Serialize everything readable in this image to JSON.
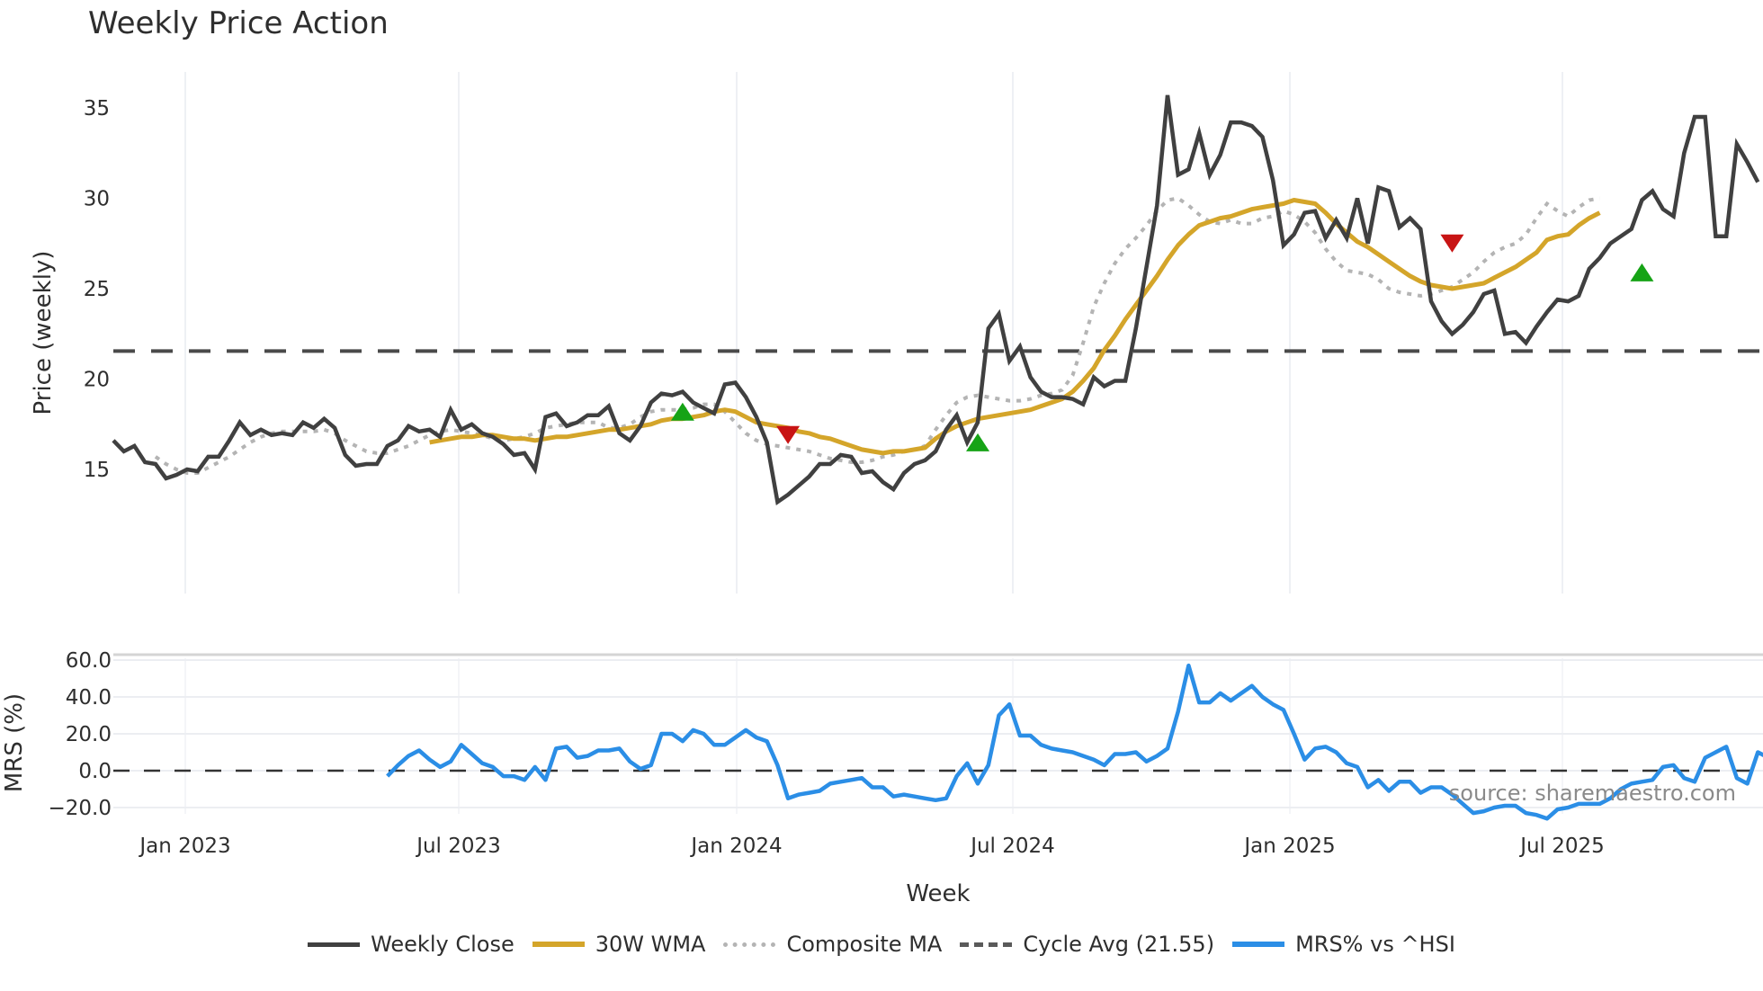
{
  "title": "Weekly Price Action",
  "colors": {
    "weekly_close": "#404040",
    "wma": "#d4a52a",
    "composite": "#b4b4b4",
    "cycle_avg": "#4a4a4a",
    "mrs": "#2b8ee6",
    "buy_marker": "#16a316",
    "sell_marker": "#c81414",
    "grid": "#eef0f4"
  },
  "legend": [
    {
      "key": "weekly_close",
      "label": "Weekly Close",
      "style": "solid"
    },
    {
      "key": "wma",
      "label": "30W WMA",
      "style": "solid"
    },
    {
      "key": "composite",
      "label": "Composite MA",
      "style": "dotted"
    },
    {
      "key": "cycle_avg",
      "label": "Cycle Avg (21.55)",
      "style": "dashed"
    },
    {
      "key": "mrs",
      "label": "MRS% vs ^HSI",
      "style": "solid"
    }
  ],
  "source_note": "source: sharemaestro.com",
  "chart_data": [
    {
      "type": "line",
      "title": "Weekly Price Action",
      "xlabel": "Week",
      "ylabel": "Price (weekly)",
      "ylim": [
        12.2,
        37
      ],
      "yticks": [
        15,
        20,
        25,
        30,
        35
      ],
      "xticks": [
        "Jan 2023",
        "Jul 2023",
        "Jan 2024",
        "Jul 2024",
        "Jan 2025",
        "Jul 2025"
      ],
      "x_start": "2022-11-18",
      "x_step": "1 week",
      "grid": "vertical",
      "legend_position": "bottom",
      "series": [
        {
          "name": "Weekly Close",
          "values": [
            16.6,
            16.0,
            16.3,
            15.4,
            15.3,
            14.5,
            14.7,
            15.0,
            14.9,
            15.7,
            15.7,
            16.6,
            17.6,
            16.9,
            17.2,
            16.9,
            17.0,
            16.9,
            17.6,
            17.3,
            17.8,
            17.3,
            15.8,
            15.2,
            15.3,
            15.3,
            16.3,
            16.6,
            17.4,
            17.1,
            17.2,
            16.8,
            18.3,
            17.2,
            17.5,
            17.0,
            16.8,
            16.4,
            15.8,
            15.9,
            15.0,
            17.9,
            18.1,
            17.4,
            17.6,
            18.0,
            18.0,
            18.5,
            17.0,
            16.6,
            17.4,
            18.7,
            19.2,
            19.1,
            19.3,
            18.7,
            18.4,
            18.1,
            19.7,
            19.8,
            19.0,
            17.9,
            16.5,
            13.2,
            13.6,
            14.1,
            14.6,
            15.3,
            15.3,
            15.8,
            15.7,
            14.8,
            14.9,
            14.3,
            13.9,
            14.8,
            15.3,
            15.5,
            16.0,
            17.2,
            18.0,
            16.5,
            17.6,
            22.8,
            23.6,
            21.0,
            21.8,
            20.1,
            19.3,
            19.0,
            19.0,
            18.9,
            18.6,
            20.1,
            19.6,
            19.9,
            19.9,
            22.8,
            26.2,
            29.6,
            35.7,
            31.3,
            31.6,
            33.6,
            31.3,
            32.4,
            34.2,
            34.2,
            34.0,
            33.4,
            31.0,
            27.4,
            28.0,
            29.2,
            29.3,
            27.8,
            28.8,
            27.8,
            30.0,
            27.5,
            30.6,
            30.4,
            28.4,
            28.9,
            28.3,
            24.3,
            23.2,
            22.5,
            23.0,
            23.7,
            24.7,
            24.9,
            22.5,
            22.6,
            22.0,
            22.9,
            23.7,
            24.4,
            24.3,
            24.6,
            26.1,
            26.7,
            27.5,
            27.9,
            28.3,
            29.9,
            30.4,
            29.4,
            29.0,
            32.5,
            34.5,
            34.5,
            27.9,
            27.9,
            33.0,
            32.0,
            30.9
          ]
        },
        {
          "name": "30W WMA",
          "start_index": 30,
          "values": [
            16.5,
            16.6,
            16.7,
            16.8,
            16.8,
            16.9,
            16.9,
            16.8,
            16.7,
            16.7,
            16.6,
            16.7,
            16.8,
            16.8,
            16.9,
            17.0,
            17.1,
            17.2,
            17.2,
            17.3,
            17.4,
            17.5,
            17.7,
            17.8,
            17.8,
            17.9,
            18.0,
            18.2,
            18.3,
            18.2,
            17.9,
            17.6,
            17.5,
            17.4,
            17.3,
            17.1,
            17.0,
            16.8,
            16.7,
            16.5,
            16.3,
            16.1,
            16.0,
            15.9,
            16.0,
            16.0,
            16.1,
            16.2,
            16.7,
            17.1,
            17.4,
            17.6,
            17.8,
            17.9,
            18.0,
            18.1,
            18.2,
            18.3,
            18.5,
            18.7,
            18.9,
            19.3,
            19.9,
            20.6,
            21.6,
            22.4,
            23.3,
            24.1,
            24.9,
            25.7,
            26.6,
            27.4,
            28.0,
            28.5,
            28.7,
            28.9,
            29.0,
            29.2,
            29.4,
            29.5,
            29.6,
            29.7,
            29.9,
            29.8,
            29.7,
            29.2,
            28.6,
            28.1,
            27.6,
            27.3,
            26.9,
            26.5,
            26.1,
            25.7,
            25.4,
            25.2,
            25.1,
            25.0,
            25.1,
            25.2,
            25.3,
            25.6,
            25.9,
            26.2,
            26.6,
            27.0,
            27.7,
            27.9,
            28.0,
            28.5,
            28.9,
            29.2
          ]
        },
        {
          "name": "Composite MA",
          "start_index": 4,
          "values": [
            15.7,
            15.3,
            15.0,
            14.8,
            14.8,
            15.1,
            15.4,
            15.7,
            16.1,
            16.5,
            16.8,
            17.0,
            17.1,
            17.1,
            17.1,
            17.1,
            17.2,
            17.0,
            16.6,
            16.3,
            16.0,
            15.9,
            15.9,
            16.1,
            16.3,
            16.6,
            16.9,
            17.1,
            17.2,
            17.1,
            17.0,
            16.9,
            16.7,
            16.6,
            16.7,
            16.8,
            17.0,
            17.3,
            17.4,
            17.5,
            17.6,
            17.6,
            17.6,
            17.3,
            17.3,
            17.5,
            17.9,
            18.2,
            18.3,
            18.3,
            18.3,
            18.4,
            18.6,
            18.6,
            18.2,
            17.6,
            17.0,
            16.6,
            16.4,
            16.3,
            16.2,
            16.1,
            16.0,
            15.8,
            15.6,
            15.5,
            15.4,
            15.4,
            15.5,
            15.7,
            15.8,
            16.0,
            16.1,
            16.3,
            17.2,
            18.0,
            18.7,
            19.0,
            19.1,
            19.0,
            18.9,
            18.8,
            18.8,
            18.9,
            19.1,
            19.2,
            19.4,
            20.2,
            22.0,
            24.0,
            25.3,
            26.4,
            27.2,
            27.8,
            28.5,
            29.3,
            29.9,
            30.0,
            29.6,
            29.1,
            28.7,
            28.6,
            28.8,
            28.6,
            28.6,
            28.9,
            29.0,
            29.3,
            29.1,
            28.7,
            28.1,
            27.2,
            26.5,
            26.0,
            25.9,
            25.8,
            25.5,
            25.0,
            24.8,
            24.7,
            24.6,
            24.7,
            24.9,
            25.1,
            25.5,
            25.9,
            26.5,
            27.0,
            27.3,
            27.5,
            28.0,
            28.9,
            29.7,
            29.3,
            29.0,
            29.5,
            29.9,
            30.0
          ]
        },
        {
          "name": "Cycle Avg (21.55)",
          "constant": 21.55
        }
      ],
      "markers": [
        {
          "type": "buy",
          "index": 54,
          "value": 18.1
        },
        {
          "type": "sell",
          "index": 64,
          "value": 16.9
        },
        {
          "type": "buy",
          "index": 82,
          "value": 16.4
        },
        {
          "type": "sell",
          "index": 127,
          "value": 27.5
        },
        {
          "type": "buy",
          "index": 145,
          "value": 25.8
        }
      ]
    },
    {
      "type": "line",
      "ylabel": "MRS (%)",
      "ylim": [
        -24,
        62
      ],
      "yticks": [
        -20.0,
        0.0,
        20.0,
        40.0,
        60.0
      ],
      "reference_line": 0,
      "series": [
        {
          "name": "MRS% vs ^HSI",
          "start_index": 26,
          "values": [
            -3,
            3,
            8,
            11,
            6,
            2,
            5,
            14,
            9,
            4,
            2,
            -3,
            -3,
            -5,
            2,
            -5,
            12,
            13,
            7,
            8,
            11,
            11,
            12,
            5,
            1,
            3,
            20,
            20,
            16,
            22,
            20,
            14,
            14,
            18,
            22,
            18,
            16,
            3,
            -15,
            -13,
            -12,
            -11,
            -7,
            -6,
            -5,
            -4,
            -9,
            -9,
            -14,
            -13,
            -14,
            -15,
            -16,
            -15,
            -3,
            4,
            -7,
            3,
            30,
            36,
            19,
            19,
            14,
            12,
            11,
            10,
            8,
            6,
            3,
            9,
            9,
            10,
            5,
            8,
            12,
            32,
            57,
            37,
            37,
            42,
            38,
            42,
            46,
            40,
            36,
            33,
            20,
            6,
            12,
            13,
            10,
            4,
            2,
            -9,
            -5,
            -11,
            -6,
            -6,
            -12,
            -9,
            -9,
            -13,
            -18,
            -23,
            -22,
            -20,
            -19,
            -19,
            -23,
            -24,
            -26,
            -21,
            -20,
            -18,
            -18,
            -18,
            -15,
            -10,
            -7,
            -6,
            -5,
            2,
            3,
            -4,
            -6,
            7,
            10,
            13,
            -4,
            -7,
            10,
            7,
            0
          ]
        }
      ]
    }
  ]
}
